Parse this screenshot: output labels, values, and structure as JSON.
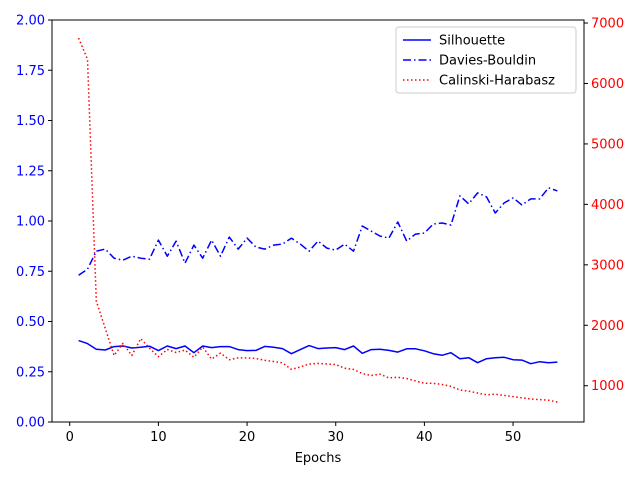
{
  "chart_data": {
    "type": "line",
    "xlabel": "Epochs",
    "xlim": [
      -2,
      58
    ],
    "x_ticks": [
      0,
      10,
      20,
      30,
      40,
      50
    ],
    "y_left": {
      "lim": [
        0,
        2.0
      ],
      "ticks": [
        0.0,
        0.25,
        0.5,
        0.75,
        1.0,
        1.25,
        1.5,
        1.75,
        2.0
      ],
      "tick_labels": [
        "0.00",
        "0.25",
        "0.50",
        "0.75",
        "1.00",
        "1.25",
        "1.50",
        "1.75",
        "2.00"
      ],
      "color": "#0000ff"
    },
    "y_right": {
      "lim": [
        400,
        7050
      ],
      "ticks": [
        1000,
        2000,
        3000,
        4000,
        5000,
        6000,
        7000
      ],
      "tick_labels": [
        "1000",
        "2000",
        "3000",
        "4000",
        "5000",
        "6000",
        "7000"
      ],
      "color": "#ff0000"
    },
    "legend_position": "top-right",
    "grid": false,
    "series": [
      {
        "name": "Silhouette",
        "axis": "left",
        "color": "#0000ff",
        "style": "solid",
        "x": [
          1,
          2,
          3,
          4,
          5,
          6,
          7,
          8,
          9,
          10,
          11,
          12,
          13,
          14,
          15,
          16,
          17,
          18,
          19,
          20,
          21,
          22,
          23,
          24,
          25,
          26,
          27,
          28,
          29,
          30,
          31,
          32,
          33,
          34,
          35,
          36,
          37,
          38,
          39,
          40,
          41,
          42,
          43,
          44,
          45,
          46,
          47,
          48,
          49,
          50,
          51,
          52,
          53,
          54,
          55
        ],
        "values": [
          0.405,
          0.39,
          0.362,
          0.358,
          0.375,
          0.378,
          0.368,
          0.372,
          0.377,
          0.355,
          0.378,
          0.365,
          0.378,
          0.345,
          0.378,
          0.37,
          0.375,
          0.375,
          0.36,
          0.355,
          0.356,
          0.376,
          0.372,
          0.365,
          0.34,
          0.36,
          0.38,
          0.365,
          0.368,
          0.37,
          0.36,
          0.378,
          0.342,
          0.36,
          0.362,
          0.356,
          0.348,
          0.364,
          0.364,
          0.354,
          0.34,
          0.332,
          0.345,
          0.315,
          0.32,
          0.295,
          0.315,
          0.32,
          0.322,
          0.31,
          0.308,
          0.29,
          0.3,
          0.295,
          0.298
        ]
      },
      {
        "name": "Davies-Bouldin",
        "axis": "left",
        "color": "#0000ff",
        "style": "dashdot",
        "x": [
          1,
          2,
          3,
          4,
          5,
          6,
          7,
          8,
          9,
          10,
          11,
          12,
          13,
          14,
          15,
          16,
          17,
          18,
          19,
          20,
          21,
          22,
          23,
          24,
          25,
          26,
          27,
          28,
          29,
          30,
          31,
          32,
          33,
          34,
          35,
          36,
          37,
          38,
          39,
          40,
          41,
          42,
          43,
          44,
          45,
          46,
          47,
          48,
          49,
          50,
          51,
          52,
          53,
          54,
          55
        ],
        "values": [
          0.73,
          0.76,
          0.85,
          0.86,
          0.815,
          0.805,
          0.825,
          0.815,
          0.81,
          0.905,
          0.825,
          0.9,
          0.79,
          0.88,
          0.815,
          0.905,
          0.825,
          0.92,
          0.86,
          0.915,
          0.87,
          0.86,
          0.88,
          0.885,
          0.915,
          0.885,
          0.85,
          0.9,
          0.865,
          0.855,
          0.885,
          0.85,
          0.975,
          0.95,
          0.925,
          0.915,
          0.995,
          0.9,
          0.935,
          0.94,
          0.985,
          0.99,
          0.98,
          1.125,
          1.085,
          1.14,
          1.12,
          1.04,
          1.09,
          1.115,
          1.08,
          1.11,
          1.11,
          1.165,
          1.15
        ]
      },
      {
        "name": "Calinski-Harabasz",
        "axis": "right",
        "color": "#ff0000",
        "style": "dotted",
        "x": [
          1,
          2,
          3,
          4,
          5,
          6,
          7,
          8,
          9,
          10,
          11,
          12,
          13,
          14,
          15,
          16,
          17,
          18,
          19,
          20,
          21,
          22,
          23,
          24,
          25,
          26,
          27,
          28,
          29,
          30,
          31,
          32,
          33,
          34,
          35,
          36,
          37,
          38,
          39,
          40,
          41,
          42,
          43,
          44,
          45,
          46,
          47,
          48,
          49,
          50,
          51,
          52,
          53,
          54,
          55
        ],
        "values": [
          6750,
          6400,
          2400,
          1950,
          1500,
          1700,
          1500,
          1780,
          1620,
          1480,
          1600,
          1550,
          1590,
          1470,
          1640,
          1440,
          1540,
          1430,
          1460,
          1460,
          1450,
          1420,
          1400,
          1380,
          1270,
          1310,
          1360,
          1370,
          1360,
          1350,
          1290,
          1270,
          1200,
          1170,
          1190,
          1130,
          1140,
          1120,
          1080,
          1040,
          1040,
          1020,
          990,
          930,
          910,
          880,
          850,
          860,
          840,
          820,
          800,
          780,
          770,
          760,
          730
        ]
      }
    ]
  }
}
